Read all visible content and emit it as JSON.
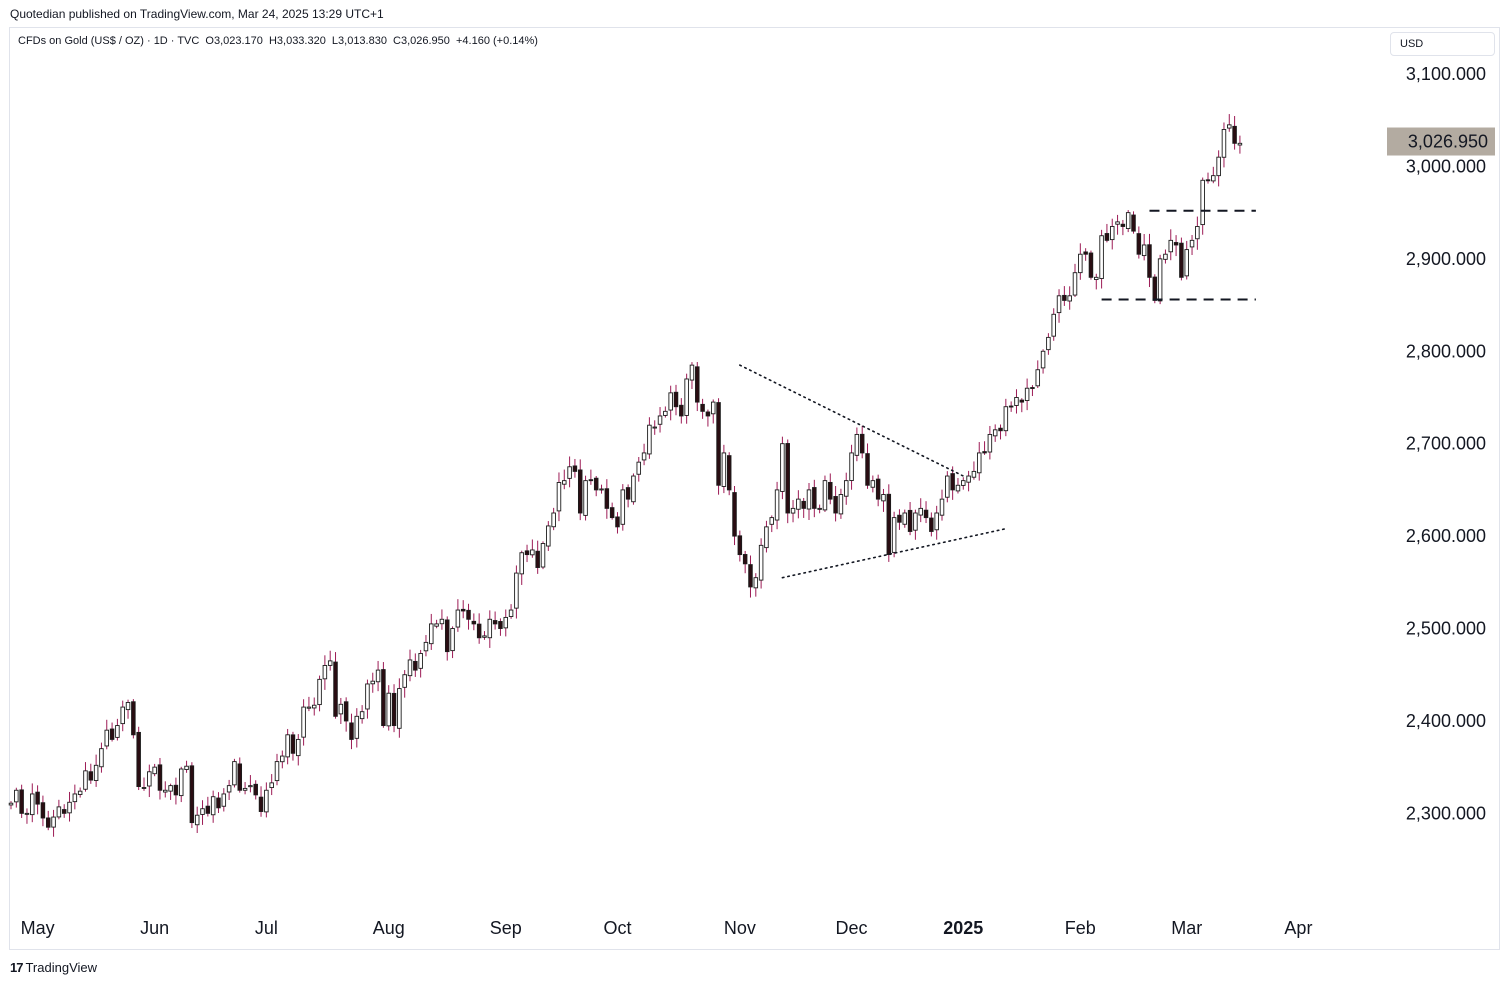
{
  "header": {
    "publisher_line": "Quotedian published on TradingView.com, Mar 24, 2025 13:29 UTC+1"
  },
  "legend": {
    "symbol": "CFDs on Gold (US$ / OZ) · 1D · TVC",
    "open": "O3,023.170",
    "high": "H3,033.320",
    "low": "L3,013.830",
    "close": "C3,026.950",
    "change": "+4.160 (+0.14%)"
  },
  "currency": "USD",
  "last_price_label": "3,026.950",
  "footer": {
    "logo_glyph": "17",
    "brand": "TradingView"
  },
  "colors": {
    "up_body": "#ffffff",
    "down_body": "#2a0d12",
    "outline": "#1c1c1c",
    "wick": "#9c1b55",
    "price_tag": "#b3aba1"
  },
  "chart_data": {
    "type": "candlestick",
    "title": "CFDs on Gold (US$ / OZ)",
    "interval": "1D",
    "ylim": [
      2210,
      3160
    ],
    "y_ticks": [
      {
        "value": 3100,
        "label": "3,100.000"
      },
      {
        "value": 3000,
        "label": "3,000.000"
      },
      {
        "value": 2900,
        "label": "2,900.000"
      },
      {
        "value": 2800,
        "label": "2,800.000"
      },
      {
        "value": 2700,
        "label": "2,700.000"
      },
      {
        "value": 2600,
        "label": "2,600.000"
      },
      {
        "value": 2500,
        "label": "2,500.000"
      },
      {
        "value": 2400,
        "label": "2,400.000"
      },
      {
        "value": 2300,
        "label": "2,300.000"
      }
    ],
    "x_ticks": [
      {
        "bar": 5,
        "label": "May",
        "year": false
      },
      {
        "bar": 27,
        "label": "Jun",
        "year": false
      },
      {
        "bar": 48,
        "label": "Jul",
        "year": false
      },
      {
        "bar": 71,
        "label": "Aug",
        "year": false
      },
      {
        "bar": 93,
        "label": "Sep",
        "year": false
      },
      {
        "bar": 114,
        "label": "Oct",
        "year": false
      },
      {
        "bar": 137,
        "label": "Nov",
        "year": false
      },
      {
        "bar": 158,
        "label": "Dec",
        "year": false
      },
      {
        "bar": 179,
        "label": "2025",
        "year": true
      },
      {
        "bar": 201,
        "label": "Feb",
        "year": false
      },
      {
        "bar": 221,
        "label": "Mar",
        "year": false
      },
      {
        "bar": 242,
        "label": "Apr",
        "year": false
      }
    ],
    "closes": [
      2311,
      2325,
      2300,
      2300,
      2321,
      2310,
      2295,
      2285,
      2296,
      2307,
      2300,
      2312,
      2321,
      2324,
      2346,
      2336,
      2352,
      2370,
      2390,
      2380,
      2395,
      2415,
      2420,
      2385,
      2329,
      2328,
      2345,
      2350,
      2325,
      2325,
      2330,
      2320,
      2348,
      2351,
      2290,
      2298,
      2305,
      2300,
      2318,
      2306,
      2321,
      2330,
      2356,
      2325,
      2327,
      2330,
      2320,
      2302,
      2325,
      2333,
      2356,
      2362,
      2385,
      2365,
      2380,
      2415,
      2415,
      2417,
      2445,
      2460,
      2465,
      2405,
      2418,
      2400,
      2380,
      2405,
      2410,
      2440,
      2443,
      2455,
      2395,
      2430,
      2395,
      2435,
      2450,
      2466,
      2455,
      2473,
      2485,
      2505,
      2505,
      2510,
      2475,
      2500,
      2520,
      2519,
      2510,
      2505,
      2490,
      2492,
      2510,
      2505,
      2500,
      2512,
      2520,
      2560,
      2582,
      2580,
      2585,
      2566,
      2592,
      2611,
      2625,
      2658,
      2660,
      2675,
      2670,
      2625,
      2660,
      2660,
      2650,
      2651,
      2630,
      2620,
      2610,
      2650,
      2640,
      2665,
      2680,
      2690,
      2720,
      2718,
      2730,
      2735,
      2755,
      2740,
      2730,
      2770,
      2785,
      2745,
      2735,
      2730,
      2745,
      2655,
      2690,
      2650,
      2600,
      2580,
      2570,
      2545,
      2555,
      2590,
      2610,
      2620,
      2650,
      2700,
      2625,
      2630,
      2640,
      2630,
      2650,
      2630,
      2630,
      2660,
      2640,
      2625,
      2645,
      2660,
      2690,
      2710,
      2690,
      2655,
      2660,
      2640,
      2645,
      2580,
      2620,
      2615,
      2625,
      2605,
      2625,
      2630,
      2620,
      2605,
      2625,
      2640,
      2665,
      2650,
      2655,
      2660,
      2665,
      2670,
      2690,
      2690,
      2710,
      2715,
      2714,
      2740,
      2740,
      2750,
      2745,
      2760,
      2760,
      2780,
      2800,
      2815,
      2840,
      2860,
      2855,
      2860,
      2885,
      2905,
      2905,
      2880,
      2880,
      2925,
      2920,
      2935,
      2940,
      2935,
      2950,
      2930,
      2905,
      2915,
      2880,
      2855,
      2900,
      2905,
      2920,
      2915,
      2880,
      2910,
      2920,
      2935,
      2985,
      2985,
      2990,
      3010,
      3040,
      3045,
      3025,
      3025
    ],
    "last": {
      "open": 3023.17,
      "high": 3033.32,
      "low": 3013.83,
      "close": 3026.95,
      "change": 4.16,
      "change_pct": 0.14
    },
    "annotations": [
      {
        "type": "dotted-trendline",
        "from": {
          "bar": 137,
          "value": 2785
        },
        "to": {
          "bar": 179,
          "value": 2665
        }
      },
      {
        "type": "dotted-trendline",
        "from": {
          "bar": 145,
          "value": 2555
        },
        "to": {
          "bar": 187,
          "value": 2608
        }
      },
      {
        "type": "dashed-horizontal",
        "value": 2952,
        "from_bar": 214,
        "to_bar": 234
      },
      {
        "type": "dashed-horizontal",
        "value": 2856,
        "from_bar": 205,
        "to_bar": 234
      }
    ]
  }
}
